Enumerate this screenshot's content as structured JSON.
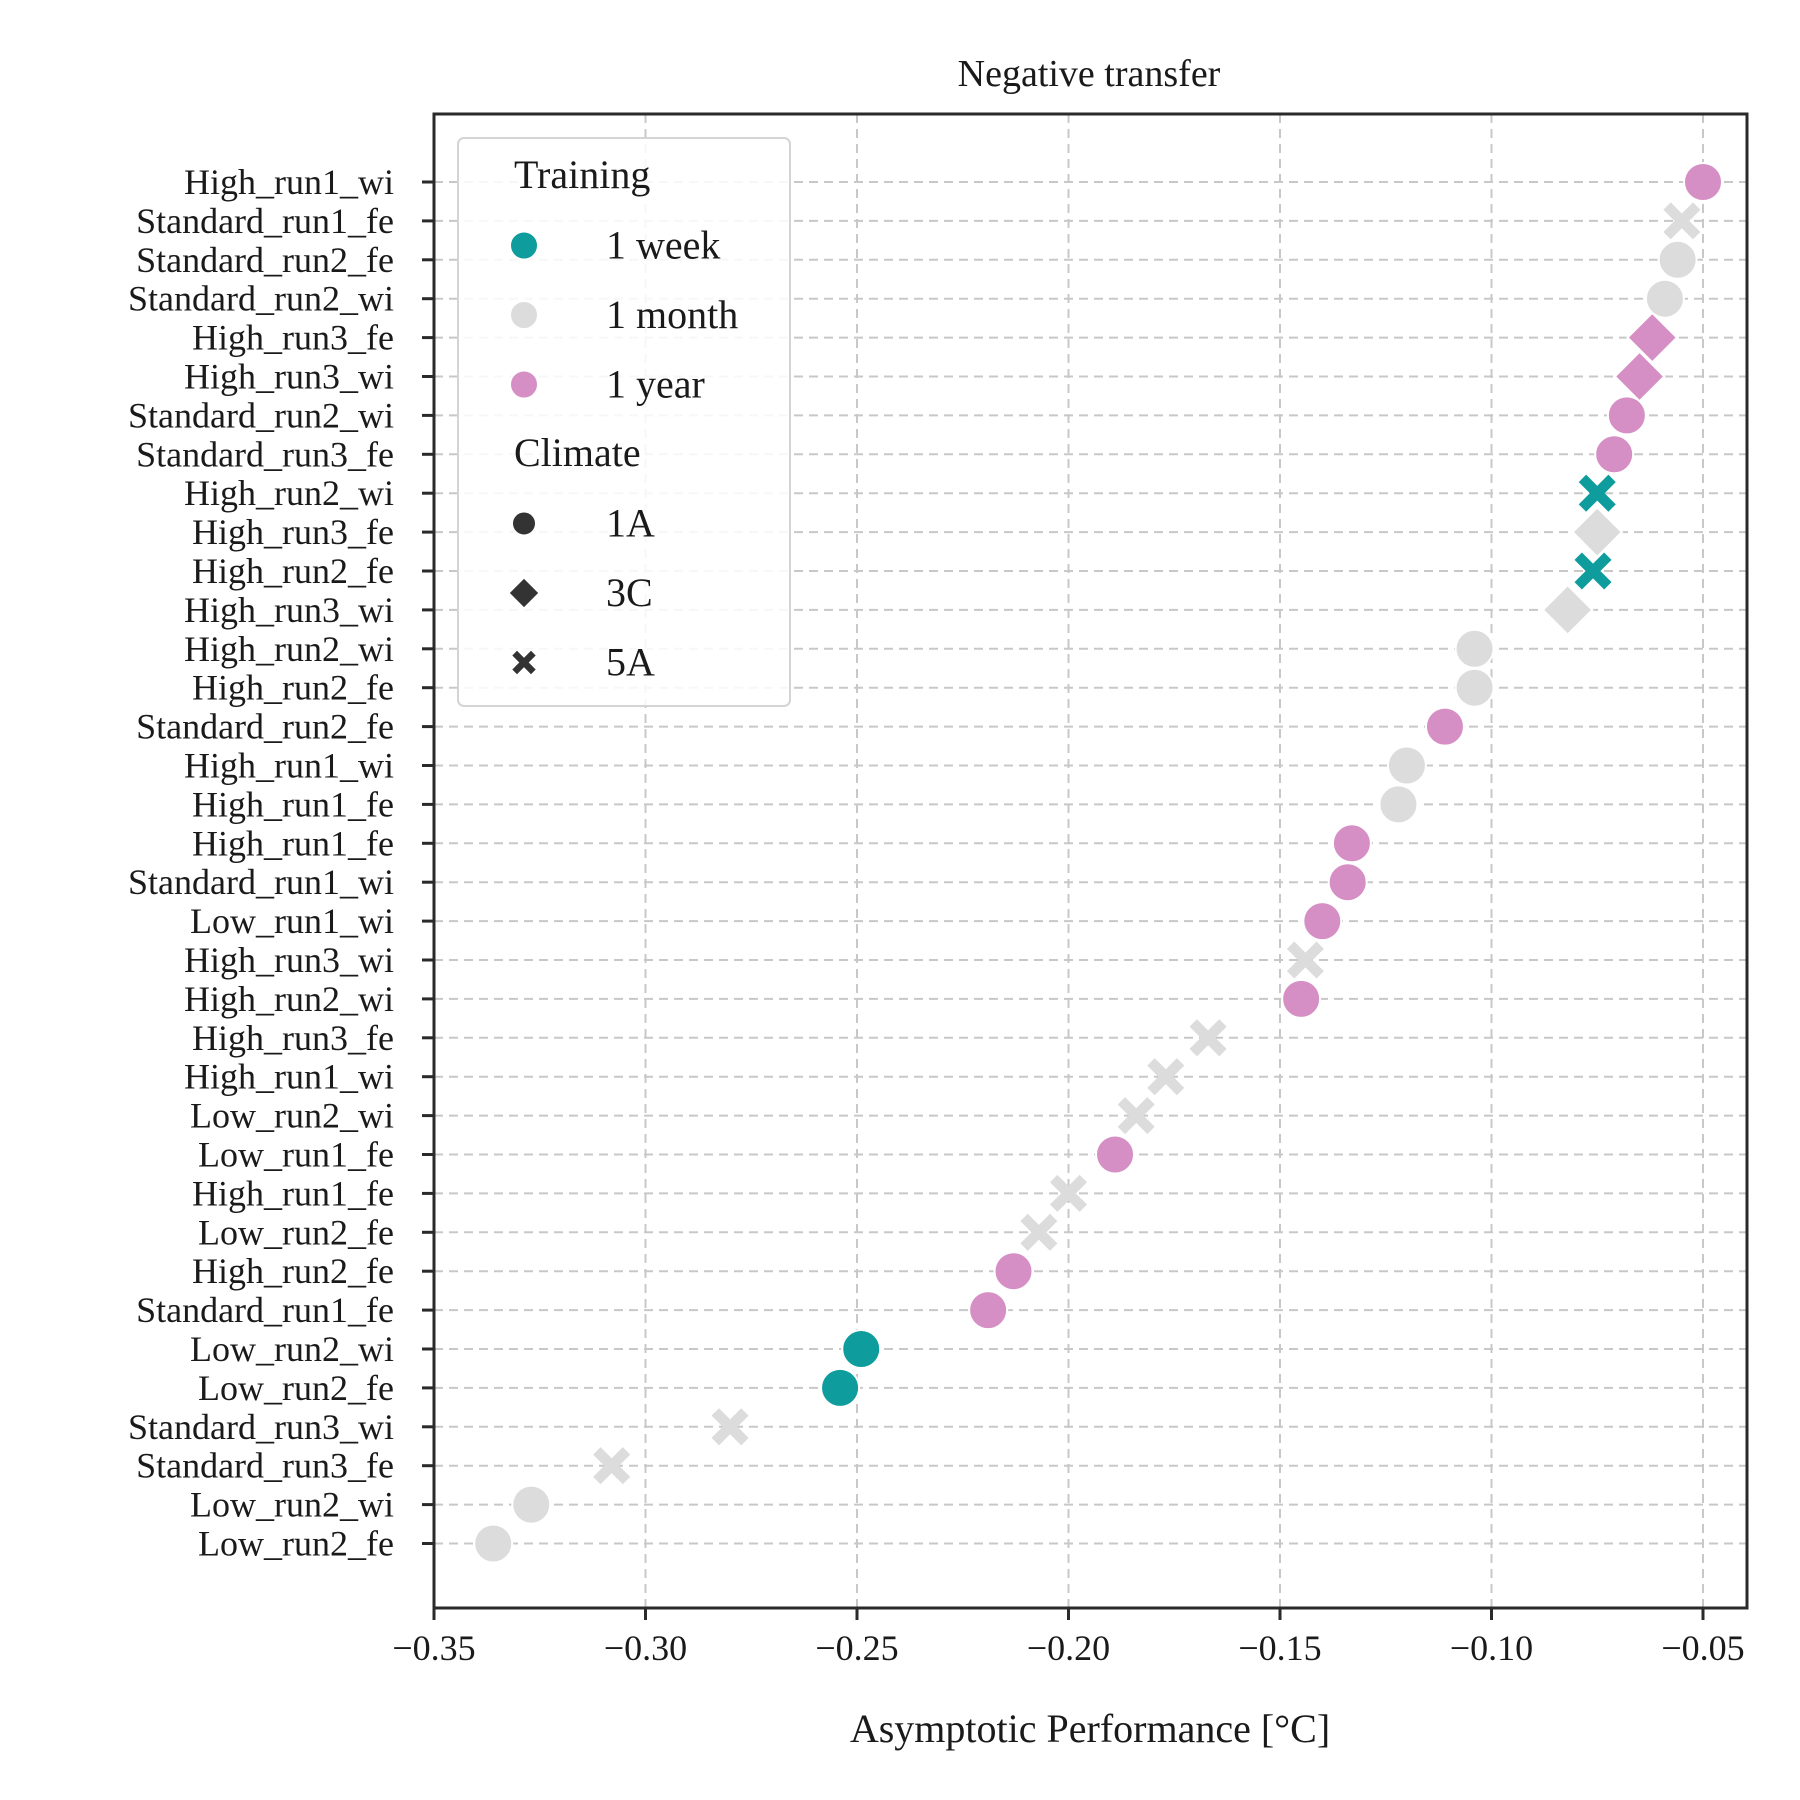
{
  "chart_data": {
    "type": "scatter",
    "title": "Negative transfer",
    "xlabel": "Asymptotic Performance [°C]",
    "ylabel": "",
    "xlim": [
      -0.35,
      -0.04
    ],
    "xticks": [
      -0.35,
      -0.3,
      -0.25,
      -0.2,
      -0.15,
      -0.1,
      -0.05
    ],
    "xtick_labels": [
      "−0.35",
      "−0.30",
      "−0.25",
      "−0.20",
      "−0.15",
      "−0.10",
      "−0.05"
    ],
    "grid": true,
    "legend_position": "top-left",
    "legend": {
      "hue_title": "Training",
      "hue_entries": [
        {
          "label": "1 week",
          "color": "#0e9c9c"
        },
        {
          "label": "1 month",
          "color": "#dcdcdc"
        },
        {
          "label": "1 year",
          "color": "#d68fc4"
        }
      ],
      "style_title": "Climate",
      "style_entries": [
        {
          "label": "1A",
          "marker": "circle"
        },
        {
          "label": "3C",
          "marker": "diamond"
        },
        {
          "label": "5A",
          "marker": "x"
        }
      ]
    },
    "categories": [
      "High_run1_wi",
      "Standard_run1_fe",
      "Standard_run2_fe",
      "Standard_run2_wi",
      "High_run3_fe",
      "High_run3_wi",
      "Standard_run2_wi",
      "Standard_run3_fe",
      "High_run2_wi",
      "High_run3_fe",
      "High_run2_fe",
      "High_run3_wi",
      "High_run2_wi",
      "High_run2_fe",
      "Standard_run2_fe",
      "High_run1_wi",
      "High_run1_fe",
      "High_run1_fe",
      "Standard_run1_wi",
      "Low_run1_wi",
      "High_run3_wi",
      "High_run2_wi",
      "High_run3_fe",
      "High_run1_wi",
      "Low_run2_wi",
      "Low_run1_fe",
      "High_run1_fe",
      "Low_run2_fe",
      "High_run2_fe",
      "Standard_run1_fe",
      "Low_run2_wi",
      "Low_run2_fe",
      "Standard_run3_wi",
      "Standard_run3_fe",
      "Low_run2_wi",
      "Low_run2_fe"
    ],
    "points": [
      {
        "x": -0.05,
        "training": "1 year",
        "climate": "1A"
      },
      {
        "x": -0.055,
        "training": "1 month",
        "climate": "5A"
      },
      {
        "x": -0.056,
        "training": "1 month",
        "climate": "1A"
      },
      {
        "x": -0.059,
        "training": "1 month",
        "climate": "1A"
      },
      {
        "x": -0.062,
        "training": "1 year",
        "climate": "3C"
      },
      {
        "x": -0.065,
        "training": "1 year",
        "climate": "3C"
      },
      {
        "x": -0.068,
        "training": "1 year",
        "climate": "1A"
      },
      {
        "x": -0.071,
        "training": "1 year",
        "climate": "1A"
      },
      {
        "x": -0.075,
        "training": "1 week",
        "climate": "5A"
      },
      {
        "x": -0.075,
        "training": "1 month",
        "climate": "3C"
      },
      {
        "x": -0.076,
        "training": "1 week",
        "climate": "5A"
      },
      {
        "x": -0.082,
        "training": "1 month",
        "climate": "3C"
      },
      {
        "x": -0.104,
        "training": "1 month",
        "climate": "1A"
      },
      {
        "x": -0.104,
        "training": "1 month",
        "climate": "1A"
      },
      {
        "x": -0.111,
        "training": "1 year",
        "climate": "1A"
      },
      {
        "x": -0.12,
        "training": "1 month",
        "climate": "1A"
      },
      {
        "x": -0.122,
        "training": "1 month",
        "climate": "1A"
      },
      {
        "x": -0.133,
        "training": "1 year",
        "climate": "1A"
      },
      {
        "x": -0.134,
        "training": "1 year",
        "climate": "1A"
      },
      {
        "x": -0.14,
        "training": "1 year",
        "climate": "1A"
      },
      {
        "x": -0.144,
        "training": "1 month",
        "climate": "5A"
      },
      {
        "x": -0.145,
        "training": "1 year",
        "climate": "1A"
      },
      {
        "x": -0.167,
        "training": "1 month",
        "climate": "5A"
      },
      {
        "x": -0.177,
        "training": "1 month",
        "climate": "5A"
      },
      {
        "x": -0.184,
        "training": "1 month",
        "climate": "5A"
      },
      {
        "x": -0.189,
        "training": "1 year",
        "climate": "1A"
      },
      {
        "x": -0.2,
        "training": "1 month",
        "climate": "5A"
      },
      {
        "x": -0.207,
        "training": "1 month",
        "climate": "5A"
      },
      {
        "x": -0.213,
        "training": "1 year",
        "climate": "1A"
      },
      {
        "x": -0.219,
        "training": "1 year",
        "climate": "1A"
      },
      {
        "x": -0.249,
        "training": "1 week",
        "climate": "1A"
      },
      {
        "x": -0.254,
        "training": "1 week",
        "climate": "1A"
      },
      {
        "x": -0.28,
        "training": "1 month",
        "climate": "5A"
      },
      {
        "x": -0.308,
        "training": "1 month",
        "climate": "5A"
      },
      {
        "x": -0.327,
        "training": "1 month",
        "climate": "1A"
      },
      {
        "x": -0.336,
        "training": "1 month",
        "climate": "1A"
      }
    ]
  }
}
